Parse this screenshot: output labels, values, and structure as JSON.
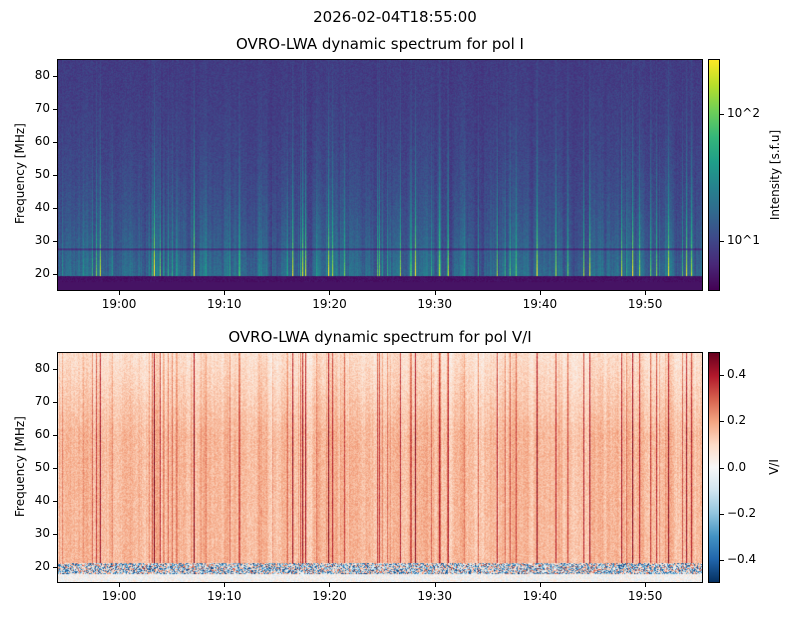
{
  "suptitle": "2026-02-04T18:55:00",
  "chart_data": [
    {
      "type": "heatmap",
      "title": "OVRO-LWA dynamic spectrum for pol I",
      "xlabel": "",
      "ylabel": "Frequency [MHz]",
      "xlim": [
        "18:54:06",
        "19:55:30"
      ],
      "ylim": [
        15,
        85
      ],
      "xticks": [
        "19:00",
        "19:10",
        "19:20",
        "19:30",
        "19:40",
        "19:50"
      ],
      "yticks": [
        20,
        30,
        40,
        50,
        60,
        70,
        80
      ],
      "colormap": "viridis",
      "color_scale": "log",
      "clim": [
        4,
        270
      ],
      "colorbar_label": "Intensity [s.f.u]",
      "colorbar_ticks": [
        "10^1",
        "10^2"
      ],
      "colorbar_tick_values": [
        10,
        100
      ]
    },
    {
      "type": "heatmap",
      "title": "OVRO-LWA dynamic spectrum for pol V/I",
      "xlabel": "",
      "ylabel": "Frequency [MHz]",
      "xlim": [
        "18:54:06",
        "19:55:30"
      ],
      "ylim": [
        15,
        85
      ],
      "xticks": [
        "19:00",
        "19:10",
        "19:20",
        "19:30",
        "19:40",
        "19:50"
      ],
      "yticks": [
        20,
        30,
        40,
        50,
        60,
        70,
        80
      ],
      "colormap": "RdBu_r",
      "color_scale": "linear",
      "clim": [
        -0.5,
        0.5
      ],
      "colorbar_label": "V/I",
      "colorbar_ticks": [
        "0.4",
        "0.2",
        "0.0",
        "−0.2",
        "−0.4"
      ],
      "colorbar_tick_values": [
        0.4,
        0.2,
        0.0,
        -0.2,
        -0.4
      ]
    }
  ]
}
